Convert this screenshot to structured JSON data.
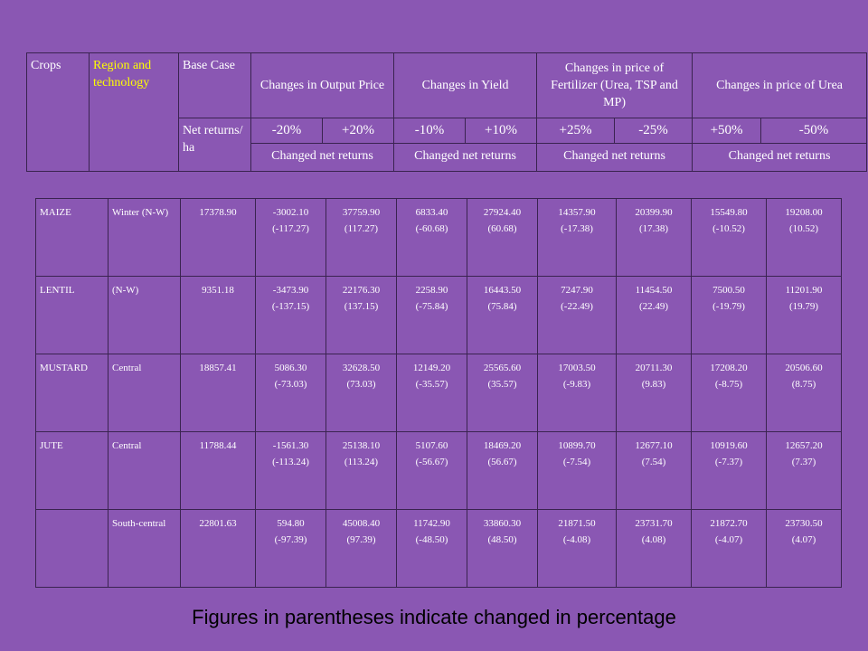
{
  "header": {
    "crops": "Crops",
    "region": "Region and technology",
    "base_case": "Base Case",
    "output_price": "Changes in Output Price",
    "yield": "Changes in Yield",
    "fertilizer": "Changes in price of Fertilizer (Urea, TSP and MP)",
    "urea": "Changes in price of Urea",
    "net_returns": "Net returns/ ha",
    "pcts": [
      "-20%",
      "+20%",
      "-10%",
      "+10%",
      "+25%",
      "-25%",
      "+50%",
      "-50%"
    ],
    "changed": [
      "Changed net returns",
      "Changed net returns",
      "Changed net returns",
      "Changed net returns"
    ]
  },
  "rows": [
    {
      "crop": "MAIZE",
      "region": "Winter (N-W)",
      "base": "17378.90",
      "cells": [
        [
          "-3002.10",
          "(-117.27)"
        ],
        [
          "37759.90",
          "(117.27)"
        ],
        [
          "6833.40",
          "(-60.68)"
        ],
        [
          "27924.40",
          "(60.68)"
        ],
        [
          "14357.90",
          "(-17.38)"
        ],
        [
          "20399.90",
          "(17.38)"
        ],
        [
          "15549.80",
          "(-10.52)"
        ],
        [
          "19208.00",
          "(10.52)"
        ]
      ]
    },
    {
      "crop": "LENTIL",
      "region": "(N-W)",
      "base": "9351.18",
      "cells": [
        [
          "-3473.90",
          "(-137.15)"
        ],
        [
          "22176.30",
          "(137.15)"
        ],
        [
          "2258.90",
          "(-75.84)"
        ],
        [
          "16443.50",
          "(75.84)"
        ],
        [
          "7247.90",
          "(-22.49)"
        ],
        [
          "11454.50",
          "(22.49)"
        ],
        [
          "7500.50",
          "(-19.79)"
        ],
        [
          "11201.90",
          "(19.79)"
        ]
      ]
    },
    {
      "crop": "MUSTARD",
      "region": "Central",
      "base": "18857.41",
      "cells": [
        [
          "5086.30",
          "(-73.03)"
        ],
        [
          "32628.50",
          "(73.03)"
        ],
        [
          "12149.20",
          "(-35.57)"
        ],
        [
          "25565.60",
          "(35.57)"
        ],
        [
          "17003.50",
          "(-9.83)"
        ],
        [
          "20711.30",
          "(9.83)"
        ],
        [
          "17208.20",
          "(-8.75)"
        ],
        [
          "20506.60",
          "(8.75)"
        ]
      ]
    },
    {
      "crop": "JUTE",
      "region": "Central",
      "base": "11788.44",
      "cells": [
        [
          "-1561.30",
          "(-113.24)"
        ],
        [
          "25138.10",
          "(113.24)"
        ],
        [
          "5107.60",
          "(-56.67)"
        ],
        [
          "18469.20",
          "(56.67)"
        ],
        [
          "10899.70",
          "(-7.54)"
        ],
        [
          "12677.10",
          "(7.54)"
        ],
        [
          "10919.60",
          "(-7.37)"
        ],
        [
          "12657.20",
          "(7.37)"
        ]
      ]
    },
    {
      "crop": "",
      "region": "South-central",
      "base": "22801.63",
      "cells": [
        [
          "594.80",
          "(-97.39)"
        ],
        [
          "45008.40",
          "(97.39)"
        ],
        [
          "11742.90",
          "(-48.50)"
        ],
        [
          "33860.30",
          "(48.50)"
        ],
        [
          "21871.50",
          "(-4.08)"
        ],
        [
          "23731.70",
          "(4.08)"
        ],
        [
          "21872.70",
          "(-4.07)"
        ],
        [
          "23730.50",
          "(4.07)"
        ]
      ]
    }
  ],
  "footnote": "Figures in parentheses indicate changed in percentage"
}
